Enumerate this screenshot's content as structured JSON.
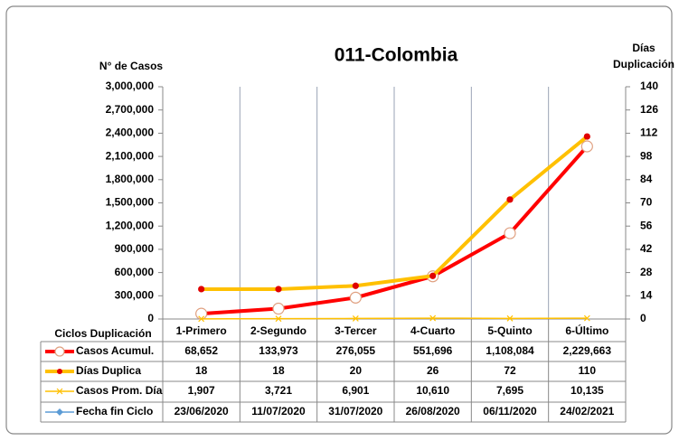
{
  "chart_data": {
    "type": "line",
    "title": "011-Colombia",
    "y_label": "N° de Casos",
    "y2_label": [
      "Días",
      "Duplicación"
    ],
    "x_label": "Ciclos Duplicación",
    "categories": [
      "1-Primero",
      "2-Segundo",
      "3-Tercer",
      "4-Cuarto",
      "5-Quinto",
      "6-Último"
    ],
    "series": [
      {
        "name": "Casos Acumul.",
        "color": "#ff0000",
        "axis": "y",
        "values": [
          68652,
          133973,
          276055,
          551696,
          1108084,
          2229663
        ],
        "value_labels": [
          "68,652",
          "133,973",
          "276,055",
          "551,696",
          "1,108,084",
          "2,229,663"
        ]
      },
      {
        "name": "Días Duplica",
        "color": "#ffc000",
        "axis": "y2",
        "values": [
          18,
          18,
          20,
          26,
          72,
          110
        ]
      },
      {
        "name": "Casos Prom. Día",
        "color": "#ffc000",
        "axis": "y",
        "values": [
          1907,
          3721,
          6901,
          10610,
          7695,
          10135
        ],
        "value_labels": [
          "1,907",
          "3,721",
          "6,901",
          "10,610",
          "7,695",
          "10,135"
        ]
      },
      {
        "name": "Fecha fin Ciclo",
        "color": "#5b9bd5",
        "value_labels": [
          "23/06/2020",
          "11/07/2020",
          "31/07/2020",
          "26/08/2020",
          "06/11/2020",
          "24/02/2021"
        ]
      }
    ],
    "ylim": [
      0,
      3000000
    ],
    "yticks": [
      0,
      {
        "value": 300000,
        "label": "300,000"
      },
      {
        "value": 600000,
        "label": "600,000"
      },
      {
        "value": 900000,
        "label": "900,000"
      },
      {
        "value": 1200000,
        "label": "1,200,000"
      },
      {
        "value": 1500000,
        "label": "1,500,000"
      },
      {
        "value": 1800000,
        "label": "1,800,000"
      },
      {
        "value": 2100000,
        "label": "2,100,000"
      },
      {
        "value": 2400000,
        "label": "2,400,000"
      },
      {
        "value": 2700000,
        "label": "2,700,000"
      },
      {
        "value": 3000000,
        "label": "3,000,000"
      }
    ],
    "y2lim": [
      0,
      140
    ],
    "y2ticks": [
      0,
      14,
      28,
      42,
      56,
      70,
      84,
      98,
      112,
      126,
      140
    ]
  }
}
